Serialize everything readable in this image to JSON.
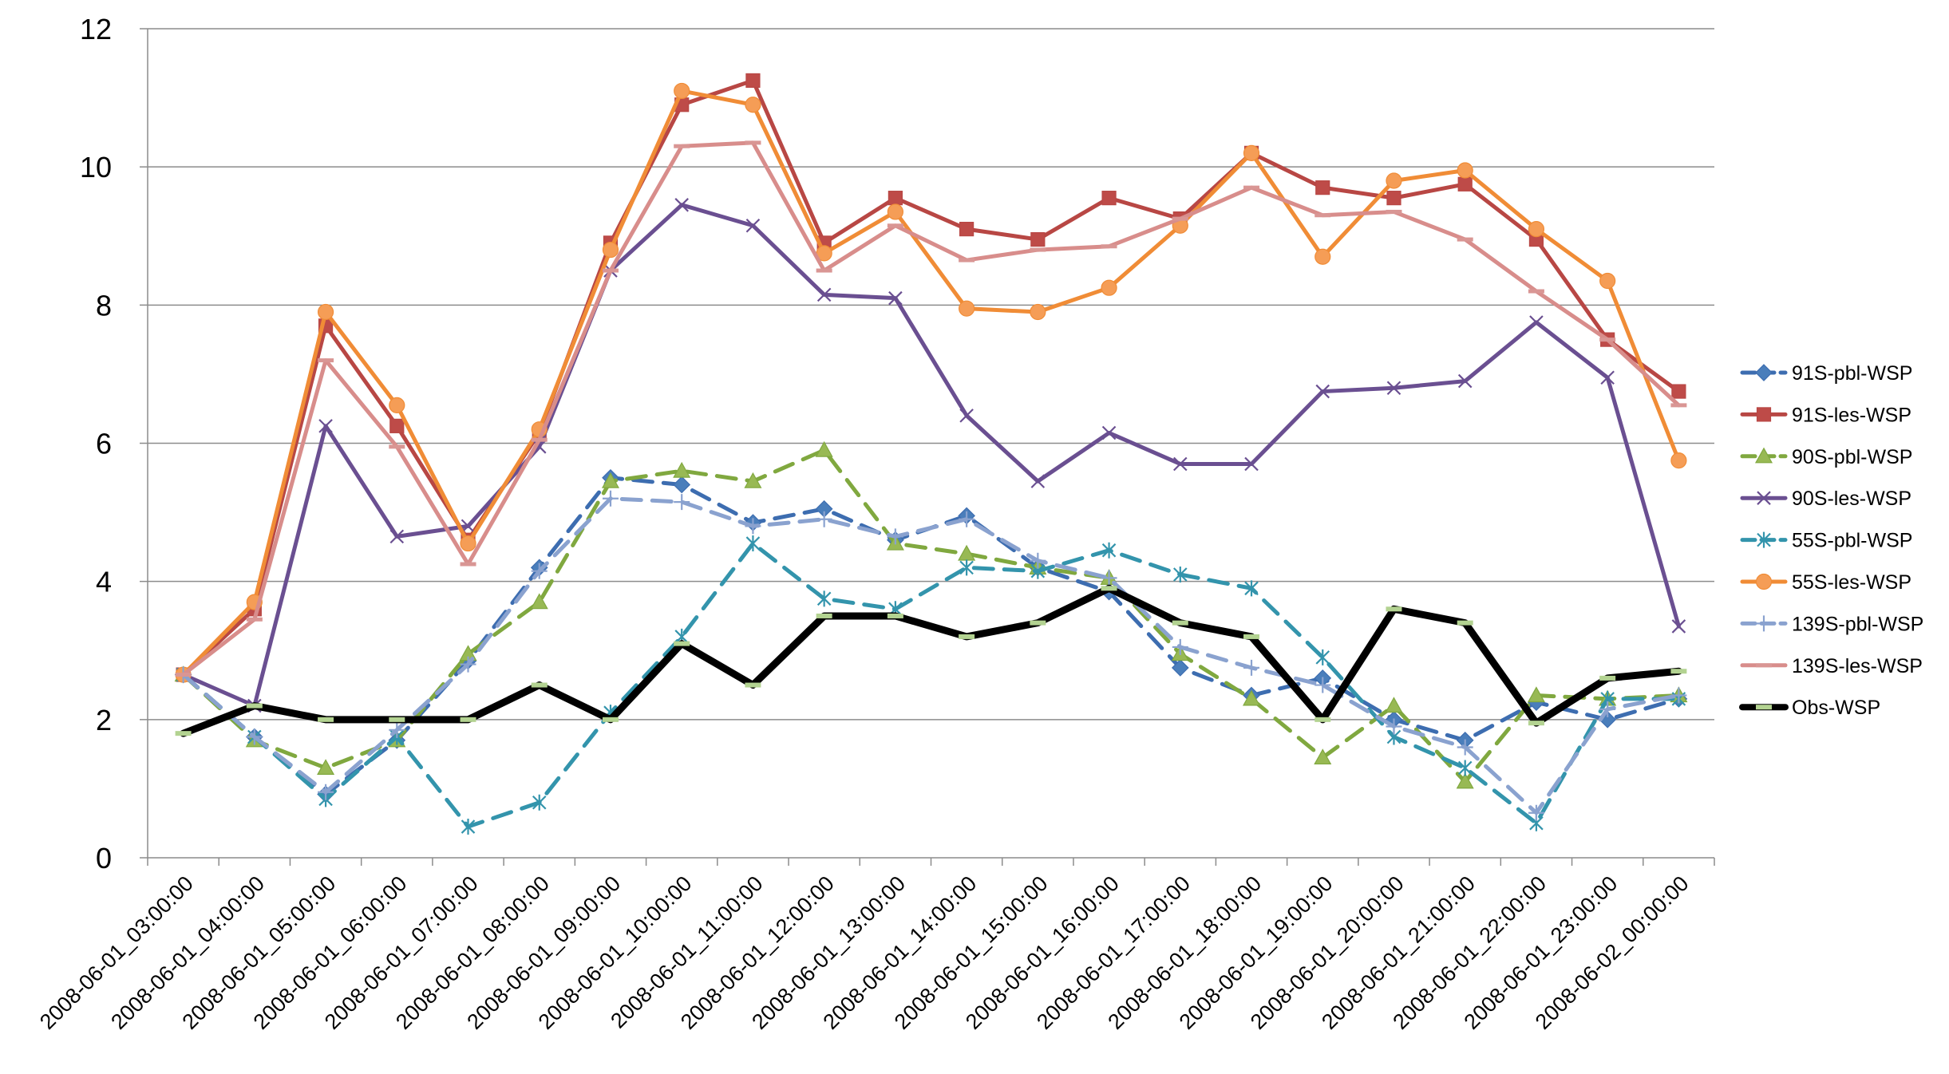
{
  "chart_data": {
    "type": "line",
    "title": "",
    "xlabel": "",
    "ylabel": "",
    "ylim": [
      0,
      12
    ],
    "yticks": [
      0,
      2,
      4,
      6,
      8,
      10,
      12
    ],
    "grid": "horizontal",
    "legend_position": "right",
    "categories": [
      "2008-06-01_03:00:00",
      "2008-06-01_04:00:00",
      "2008-06-01_05:00:00",
      "2008-06-01_06:00:00",
      "2008-06-01_07:00:00",
      "2008-06-01_08:00:00",
      "2008-06-01_09:00:00",
      "2008-06-01_10:00:00",
      "2008-06-01_11:00:00",
      "2008-06-01_12:00:00",
      "2008-06-01_13:00:00",
      "2008-06-01_14:00:00",
      "2008-06-01_15:00:00",
      "2008-06-01_16:00:00",
      "2008-06-01_17:00:00",
      "2008-06-01_18:00:00",
      "2008-06-01_19:00:00",
      "2008-06-01_20:00:00",
      "2008-06-01_21:00:00",
      "2008-06-01_22:00:00",
      "2008-06-01_23:00:00",
      "2008-06-02_00:00:00"
    ],
    "series": [
      {
        "name": "91S-pbl-WSP",
        "color": "#4a7ebb",
        "line_color": "#3d6db0",
        "dash": true,
        "marker": "diamond",
        "values": [
          2.65,
          1.75,
          0.92,
          1.7,
          2.85,
          4.2,
          5.5,
          5.4,
          4.85,
          5.05,
          4.6,
          4.95,
          4.2,
          3.85,
          2.75,
          2.35,
          2.6,
          2.0,
          1.7,
          2.25,
          2.0,
          2.3
        ]
      },
      {
        "name": "91S-les-WSP",
        "color": "#be4b48",
        "line_color": "#b84744",
        "dash": false,
        "marker": "square",
        "values": [
          2.65,
          3.6,
          7.7,
          6.25,
          4.6,
          6.15,
          8.9,
          10.9,
          11.25,
          8.9,
          9.55,
          9.1,
          8.95,
          9.55,
          9.25,
          10.2,
          9.7,
          9.55,
          9.75,
          8.95,
          7.5,
          6.75
        ]
      },
      {
        "name": "90S-pbl-WSP",
        "color": "#98b954",
        "line_color": "#80a83f",
        "dash": true,
        "marker": "triangle",
        "values": [
          2.65,
          1.7,
          1.3,
          1.7,
          2.95,
          3.7,
          5.45,
          5.6,
          5.45,
          5.9,
          4.55,
          4.4,
          4.2,
          4.05,
          2.95,
          2.3,
          1.45,
          2.2,
          1.1,
          2.35,
          2.3,
          2.35
        ]
      },
      {
        "name": "90S-les-WSP",
        "color": "#7d60a0",
        "line_color": "#6a4f91",
        "dash": false,
        "marker": "x",
        "values": [
          2.65,
          2.2,
          6.25,
          4.65,
          4.8,
          5.95,
          8.5,
          9.45,
          9.15,
          8.15,
          8.1,
          6.4,
          5.45,
          6.15,
          5.7,
          5.7,
          6.75,
          6.8,
          6.9,
          7.75,
          6.95,
          3.35
        ]
      },
      {
        "name": "55S-pbl-WSP",
        "color": "#46aac5",
        "line_color": "#3394ac",
        "dash": true,
        "marker": "star",
        "values": [
          2.65,
          1.75,
          0.85,
          1.75,
          0.45,
          0.8,
          2.1,
          3.2,
          4.55,
          3.75,
          3.6,
          4.2,
          4.15,
          4.45,
          4.1,
          3.9,
          2.9,
          1.75,
          1.3,
          0.5,
          2.3,
          2.3
        ]
      },
      {
        "name": "55S-les-WSP",
        "color": "#f59d56",
        "line_color": "#f08c36",
        "dash": false,
        "marker": "circle",
        "values": [
          2.65,
          3.7,
          7.9,
          6.55,
          4.55,
          6.2,
          8.8,
          11.1,
          10.9,
          8.75,
          9.35,
          7.95,
          7.9,
          8.25,
          9.15,
          10.2,
          8.7,
          9.8,
          9.95,
          9.1,
          8.35,
          5.75
        ]
      },
      {
        "name": "139S-pbl-WSP",
        "color": "#93a9d0",
        "line_color": "#8aa2cf",
        "dash": true,
        "marker": "plus",
        "values": [
          2.65,
          1.75,
          0.95,
          1.85,
          2.8,
          4.15,
          5.2,
          5.15,
          4.8,
          4.9,
          4.65,
          4.9,
          4.3,
          4.05,
          3.05,
          2.75,
          2.5,
          1.9,
          1.6,
          0.65,
          2.15,
          2.35
        ]
      },
      {
        "name": "139S-les-WSP",
        "color": "#d99694",
        "line_color": "#d88d8b",
        "dash": false,
        "marker": "dash",
        "values": [
          2.65,
          3.45,
          7.2,
          5.95,
          4.25,
          6.05,
          8.5,
          10.3,
          10.35,
          8.5,
          9.15,
          8.65,
          8.8,
          8.85,
          9.25,
          9.7,
          9.3,
          9.35,
          8.95,
          8.2,
          7.5,
          6.55
        ]
      },
      {
        "name": "Obs-WSP",
        "color": "#000000",
        "line_color": "#000000",
        "dash": false,
        "marker": "obs-dash",
        "marker_color": "#b3d391",
        "values": [
          1.8,
          2.2,
          2.0,
          2.0,
          2.0,
          2.5,
          2.0,
          3.1,
          2.5,
          3.5,
          3.5,
          3.2,
          3.4,
          3.9,
          3.4,
          3.2,
          2.0,
          3.6,
          3.4,
          1.95,
          2.6,
          2.7
        ]
      }
    ]
  }
}
